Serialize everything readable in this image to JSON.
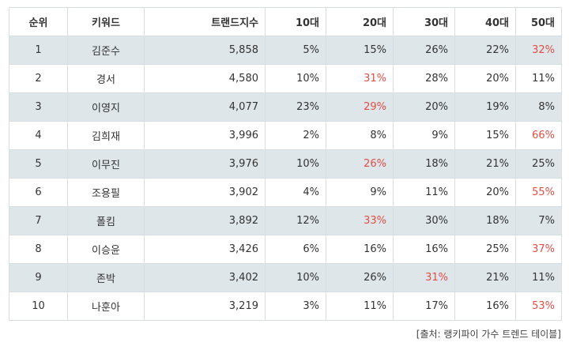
{
  "table": {
    "headers": [
      "순위",
      "키워드",
      "트랜드지수",
      "10대",
      "20대",
      "30대",
      "40대",
      "50대"
    ],
    "rows": [
      {
        "rank": "1",
        "keyword": "김준수",
        "index": "5,858",
        "cells": [
          {
            "v": "5%",
            "hl": false
          },
          {
            "v": "15%",
            "hl": false
          },
          {
            "v": "26%",
            "hl": false
          },
          {
            "v": "22%",
            "hl": false
          },
          {
            "v": "32%",
            "hl": true
          }
        ]
      },
      {
        "rank": "2",
        "keyword": "경서",
        "index": "4,580",
        "cells": [
          {
            "v": "10%",
            "hl": false
          },
          {
            "v": "31%",
            "hl": true
          },
          {
            "v": "28%",
            "hl": false
          },
          {
            "v": "20%",
            "hl": false
          },
          {
            "v": "11%",
            "hl": false
          }
        ]
      },
      {
        "rank": "3",
        "keyword": "이영지",
        "index": "4,077",
        "cells": [
          {
            "v": "23%",
            "hl": false
          },
          {
            "v": "29%",
            "hl": true
          },
          {
            "v": "20%",
            "hl": false
          },
          {
            "v": "19%",
            "hl": false
          },
          {
            "v": "8%",
            "hl": false
          }
        ]
      },
      {
        "rank": "4",
        "keyword": "김희재",
        "index": "3,996",
        "cells": [
          {
            "v": "2%",
            "hl": false
          },
          {
            "v": "8%",
            "hl": false
          },
          {
            "v": "9%",
            "hl": false
          },
          {
            "v": "15%",
            "hl": false
          },
          {
            "v": "66%",
            "hl": true
          }
        ]
      },
      {
        "rank": "5",
        "keyword": "이무진",
        "index": "3,976",
        "cells": [
          {
            "v": "10%",
            "hl": false
          },
          {
            "v": "26%",
            "hl": true
          },
          {
            "v": "18%",
            "hl": false
          },
          {
            "v": "21%",
            "hl": false
          },
          {
            "v": "25%",
            "hl": false
          }
        ]
      },
      {
        "rank": "6",
        "keyword": "조용필",
        "index": "3,902",
        "cells": [
          {
            "v": "4%",
            "hl": false
          },
          {
            "v": "9%",
            "hl": false
          },
          {
            "v": "11%",
            "hl": false
          },
          {
            "v": "20%",
            "hl": false
          },
          {
            "v": "55%",
            "hl": true
          }
        ]
      },
      {
        "rank": "7",
        "keyword": "폴킴",
        "index": "3,892",
        "cells": [
          {
            "v": "12%",
            "hl": false
          },
          {
            "v": "33%",
            "hl": true
          },
          {
            "v": "30%",
            "hl": false
          },
          {
            "v": "18%",
            "hl": false
          },
          {
            "v": "7%",
            "hl": false
          }
        ]
      },
      {
        "rank": "8",
        "keyword": "이승윤",
        "index": "3,426",
        "cells": [
          {
            "v": "6%",
            "hl": false
          },
          {
            "v": "16%",
            "hl": false
          },
          {
            "v": "16%",
            "hl": false
          },
          {
            "v": "25%",
            "hl": false
          },
          {
            "v": "37%",
            "hl": true
          }
        ]
      },
      {
        "rank": "9",
        "keyword": "존박",
        "index": "3,402",
        "cells": [
          {
            "v": "10%",
            "hl": false
          },
          {
            "v": "26%",
            "hl": false
          },
          {
            "v": "31%",
            "hl": true
          },
          {
            "v": "21%",
            "hl": false
          },
          {
            "v": "11%",
            "hl": false
          }
        ]
      },
      {
        "rank": "10",
        "keyword": "나훈아",
        "index": "3,219",
        "cells": [
          {
            "v": "3%",
            "hl": false
          },
          {
            "v": "11%",
            "hl": false
          },
          {
            "v": "17%",
            "hl": false
          },
          {
            "v": "16%",
            "hl": false
          },
          {
            "v": "53%",
            "hl": true
          }
        ]
      }
    ]
  },
  "source": "[출처: 랭키파이 가수 트렌드 테이블]",
  "colors": {
    "highlight": "#e04f45",
    "row_shade": "#dfe6ea",
    "border": "#d8dde0"
  }
}
